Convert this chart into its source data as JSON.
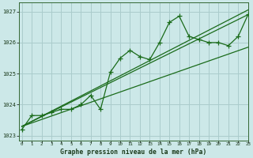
{
  "title": "Graphe pression niveau de la mer (hPa)",
  "background_color": "#cce8e8",
  "grid_color": "#aacccc",
  "line_color": "#1a6b1a",
  "x_values": [
    0,
    1,
    2,
    3,
    4,
    5,
    6,
    7,
    8,
    9,
    10,
    11,
    12,
    13,
    14,
    15,
    16,
    17,
    18,
    19,
    20,
    21,
    22,
    23
  ],
  "y_main": [
    1023.2,
    1023.65,
    1023.65,
    1023.75,
    1023.85,
    1023.85,
    1024.0,
    1024.3,
    1023.85,
    1025.05,
    1025.5,
    1025.75,
    1025.55,
    1025.45,
    1026.0,
    1026.65,
    1026.85,
    1026.2,
    1026.1,
    1026.0,
    1026.0,
    1025.9,
    1026.2,
    1026.9
  ],
  "trend_lines": [
    {
      "x0": 0,
      "y0": 1023.3,
      "x1": 23,
      "y1": 1026.9
    },
    {
      "x0": 0,
      "y0": 1023.3,
      "x1": 23,
      "y1": 1027.05
    },
    {
      "x0": 0,
      "y0": 1023.3,
      "x1": 23,
      "y1": 1025.85
    }
  ],
  "ylim": [
    1022.85,
    1027.3
  ],
  "xlim": [
    -0.3,
    23
  ],
  "yticks": [
    1023,
    1024,
    1025,
    1026,
    1027
  ],
  "xticks": [
    0,
    1,
    2,
    3,
    4,
    5,
    6,
    7,
    8,
    9,
    10,
    11,
    12,
    13,
    14,
    15,
    16,
    17,
    18,
    19,
    20,
    21,
    22,
    23
  ]
}
